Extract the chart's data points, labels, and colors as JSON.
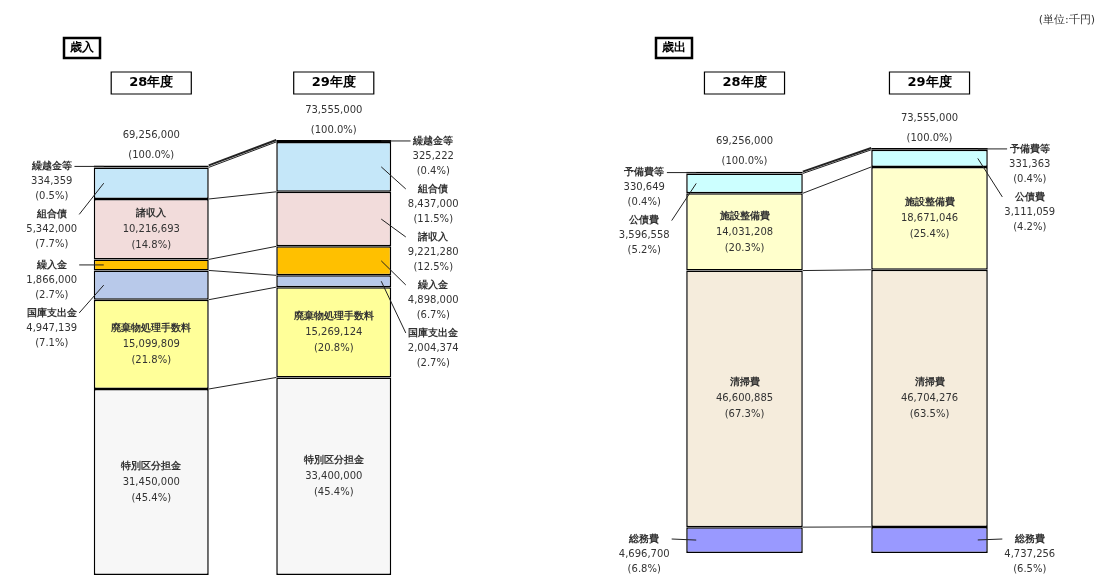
{
  "chart_data": [
    {
      "type": "bar",
      "stacked": true,
      "title": "歳入",
      "categories": [
        "28年度",
        "29年度"
      ],
      "legend": false,
      "series": [
        {
          "name": "特別区分担金",
          "color": "#f7f7f7",
          "values": [
            31450000,
            33400000
          ],
          "value_labels": [
            "31,450,000 (45.4%)",
            "33,400,000 (45.4%)"
          ]
        },
        {
          "name": "廃棄物処理手数料",
          "color": "#ffff99",
          "values": [
            15099809,
            15269124
          ],
          "value_labels": [
            "15,099,809 (21.8%)",
            "15,269,124 (20.8%)"
          ]
        },
        {
          "name": "国庫支出金",
          "color": "#b8c9ea",
          "values": [
            4947139,
            2004374
          ],
          "value_labels": [
            "4,947,139 (7.1%)",
            "2,004,374 (2.7%)"
          ]
        },
        {
          "name": "繰入金",
          "color": "#ffc000",
          "values": [
            1866000,
            4898000
          ],
          "value_labels": [
            "1,866,000 (2.7%)",
            "4,898,000 (6.7%)"
          ]
        },
        {
          "name": "諸収入",
          "color": "#f2dcdb",
          "values": [
            10216693,
            9221280
          ],
          "value_labels": [
            "10,216,693 (14.8%)",
            "9,221,280 (12.5%)"
          ]
        },
        {
          "name": "組合債",
          "color": "#c5e7f9",
          "values": [
            5342000,
            8437000
          ],
          "value_labels": [
            "5,342,000 (7.7%)",
            "8,437,000 (11.5%)"
          ]
        },
        {
          "name": "繰越金等",
          "color": "#000000",
          "values": [
            334359,
            325222
          ],
          "value_labels": [
            "334,359 (0.5%)",
            "325,222 (0.4%)"
          ]
        }
      ],
      "totals": [
        "69,256,000 (100.0%)",
        "73,555,000 (100.0%)"
      ]
    },
    {
      "type": "bar",
      "stacked": true,
      "title": "歳出",
      "categories": [
        "28年度",
        "29年度"
      ],
      "legend": false,
      "series": [
        {
          "name": "総務費",
          "color": "#9999ff",
          "values": [
            4696700,
            4737256
          ],
          "value_labels": [
            "4,696,700 (6.8%)",
            "4,737,256 (6.5%)"
          ]
        },
        {
          "name": "清掃費",
          "color": "#f5ecdc",
          "values": [
            46600885,
            46704276
          ],
          "value_labels": [
            "46,600,885 (67.3%)",
            "46,704,276 (63.5%)"
          ]
        },
        {
          "name": "施設整備費",
          "color": "#ffffcc",
          "values": [
            14031208,
            18671046
          ],
          "value_labels": [
            "14,031,208 (20.3%)",
            "18,671,046 (25.4%)"
          ]
        },
        {
          "name": "公債費",
          "color": "#ccffff",
          "values": [
            3596558,
            3111059
          ],
          "value_labels": [
            "3,596,558 (5.2%)",
            "3,111,059 (4.2%)"
          ]
        },
        {
          "name": "予備費等",
          "color": "#000000",
          "values": [
            330649,
            331363
          ],
          "value_labels": [
            "330,649 (0.4%)",
            "331,363 (0.4%)"
          ]
        }
      ],
      "totals": [
        "69,256,000 (100.0%)",
        "73,555,000 (100.0%)"
      ],
      "annotations": [
        "(単位:千円)"
      ]
    }
  ]
}
